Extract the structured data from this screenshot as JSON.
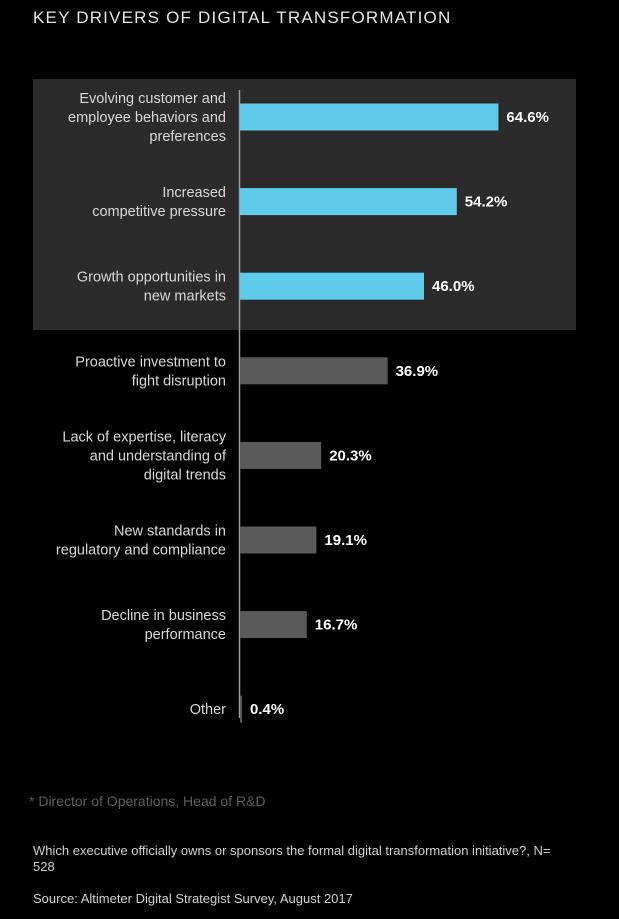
{
  "title": "KEY DRIVERS OF DIGITAL TRANSFORMATION",
  "footnote": "* Director of Operations, Head of R&D",
  "question": "Which executive officially owns or sponsors the formal digital transformation initiative?, N= 528",
  "source": "Source: Altimeter Digital Strategist Survey, August 2017",
  "colors": {
    "highlight_bar": "#5fcbea",
    "default_bar": "#5a5a5a",
    "highlight_panel": "#2b2b2b",
    "axis": "#9a9a9a"
  },
  "chart_data": {
    "type": "bar",
    "orientation": "horizontal",
    "title": "KEY DRIVERS OF DIGITAL TRANSFORMATION",
    "unit": "%",
    "categories": [
      "Evolving customer and employee behaviors and preferences",
      "Increased competitive pressure",
      "Growth opportunities in new markets",
      "Proactive investment to fight disruption",
      "Lack of expertise, literacy and understanding of digital trends",
      "New standards in regulatory and compliance",
      "Decline in business performance",
      "Other"
    ],
    "category_lines": [
      [
        "Evolving customer and",
        "employee behaviors and",
        "preferences"
      ],
      [
        "Increased",
        "competitive pressure"
      ],
      [
        "Growth opportunities in",
        "new markets"
      ],
      [
        "Proactive investment to",
        "fight disruption"
      ],
      [
        "Lack of expertise, literacy",
        "and understanding of",
        "digital trends"
      ],
      [
        "New standards in",
        "regulatory and compliance"
      ],
      [
        "Decline in business",
        "performance"
      ],
      [
        "Other"
      ]
    ],
    "values": [
      64.6,
      54.2,
      46.0,
      36.9,
      20.3,
      19.1,
      16.7,
      0.4
    ],
    "value_labels": [
      "64.6%",
      "54.2%",
      "46.0%",
      "36.9%",
      "20.3%",
      "19.1%",
      "16.7%",
      "0.4%"
    ],
    "highlighted": [
      true,
      true,
      true,
      false,
      false,
      false,
      false,
      false
    ],
    "xlim": [
      0,
      100
    ]
  }
}
